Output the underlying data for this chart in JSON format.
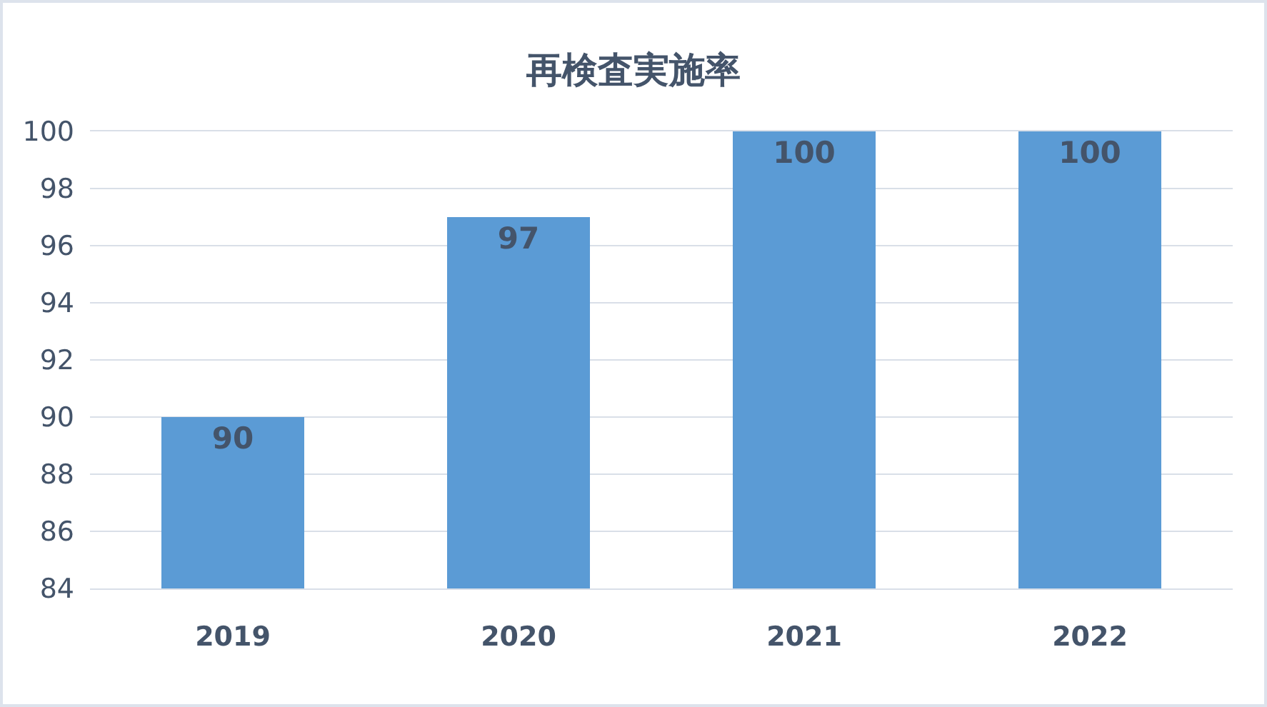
{
  "chart_data": {
    "type": "bar",
    "title": "再検査実施率",
    "categories": [
      "2019",
      "2020",
      "2021",
      "2022"
    ],
    "values": [
      90,
      97,
      100,
      100
    ],
    "color": "#5b9bd5",
    "ylim": [
      84,
      100
    ],
    "yticks": [
      84,
      86,
      88,
      90,
      92,
      94,
      96,
      98,
      100
    ],
    "grid": "y",
    "data_labels": true
  }
}
